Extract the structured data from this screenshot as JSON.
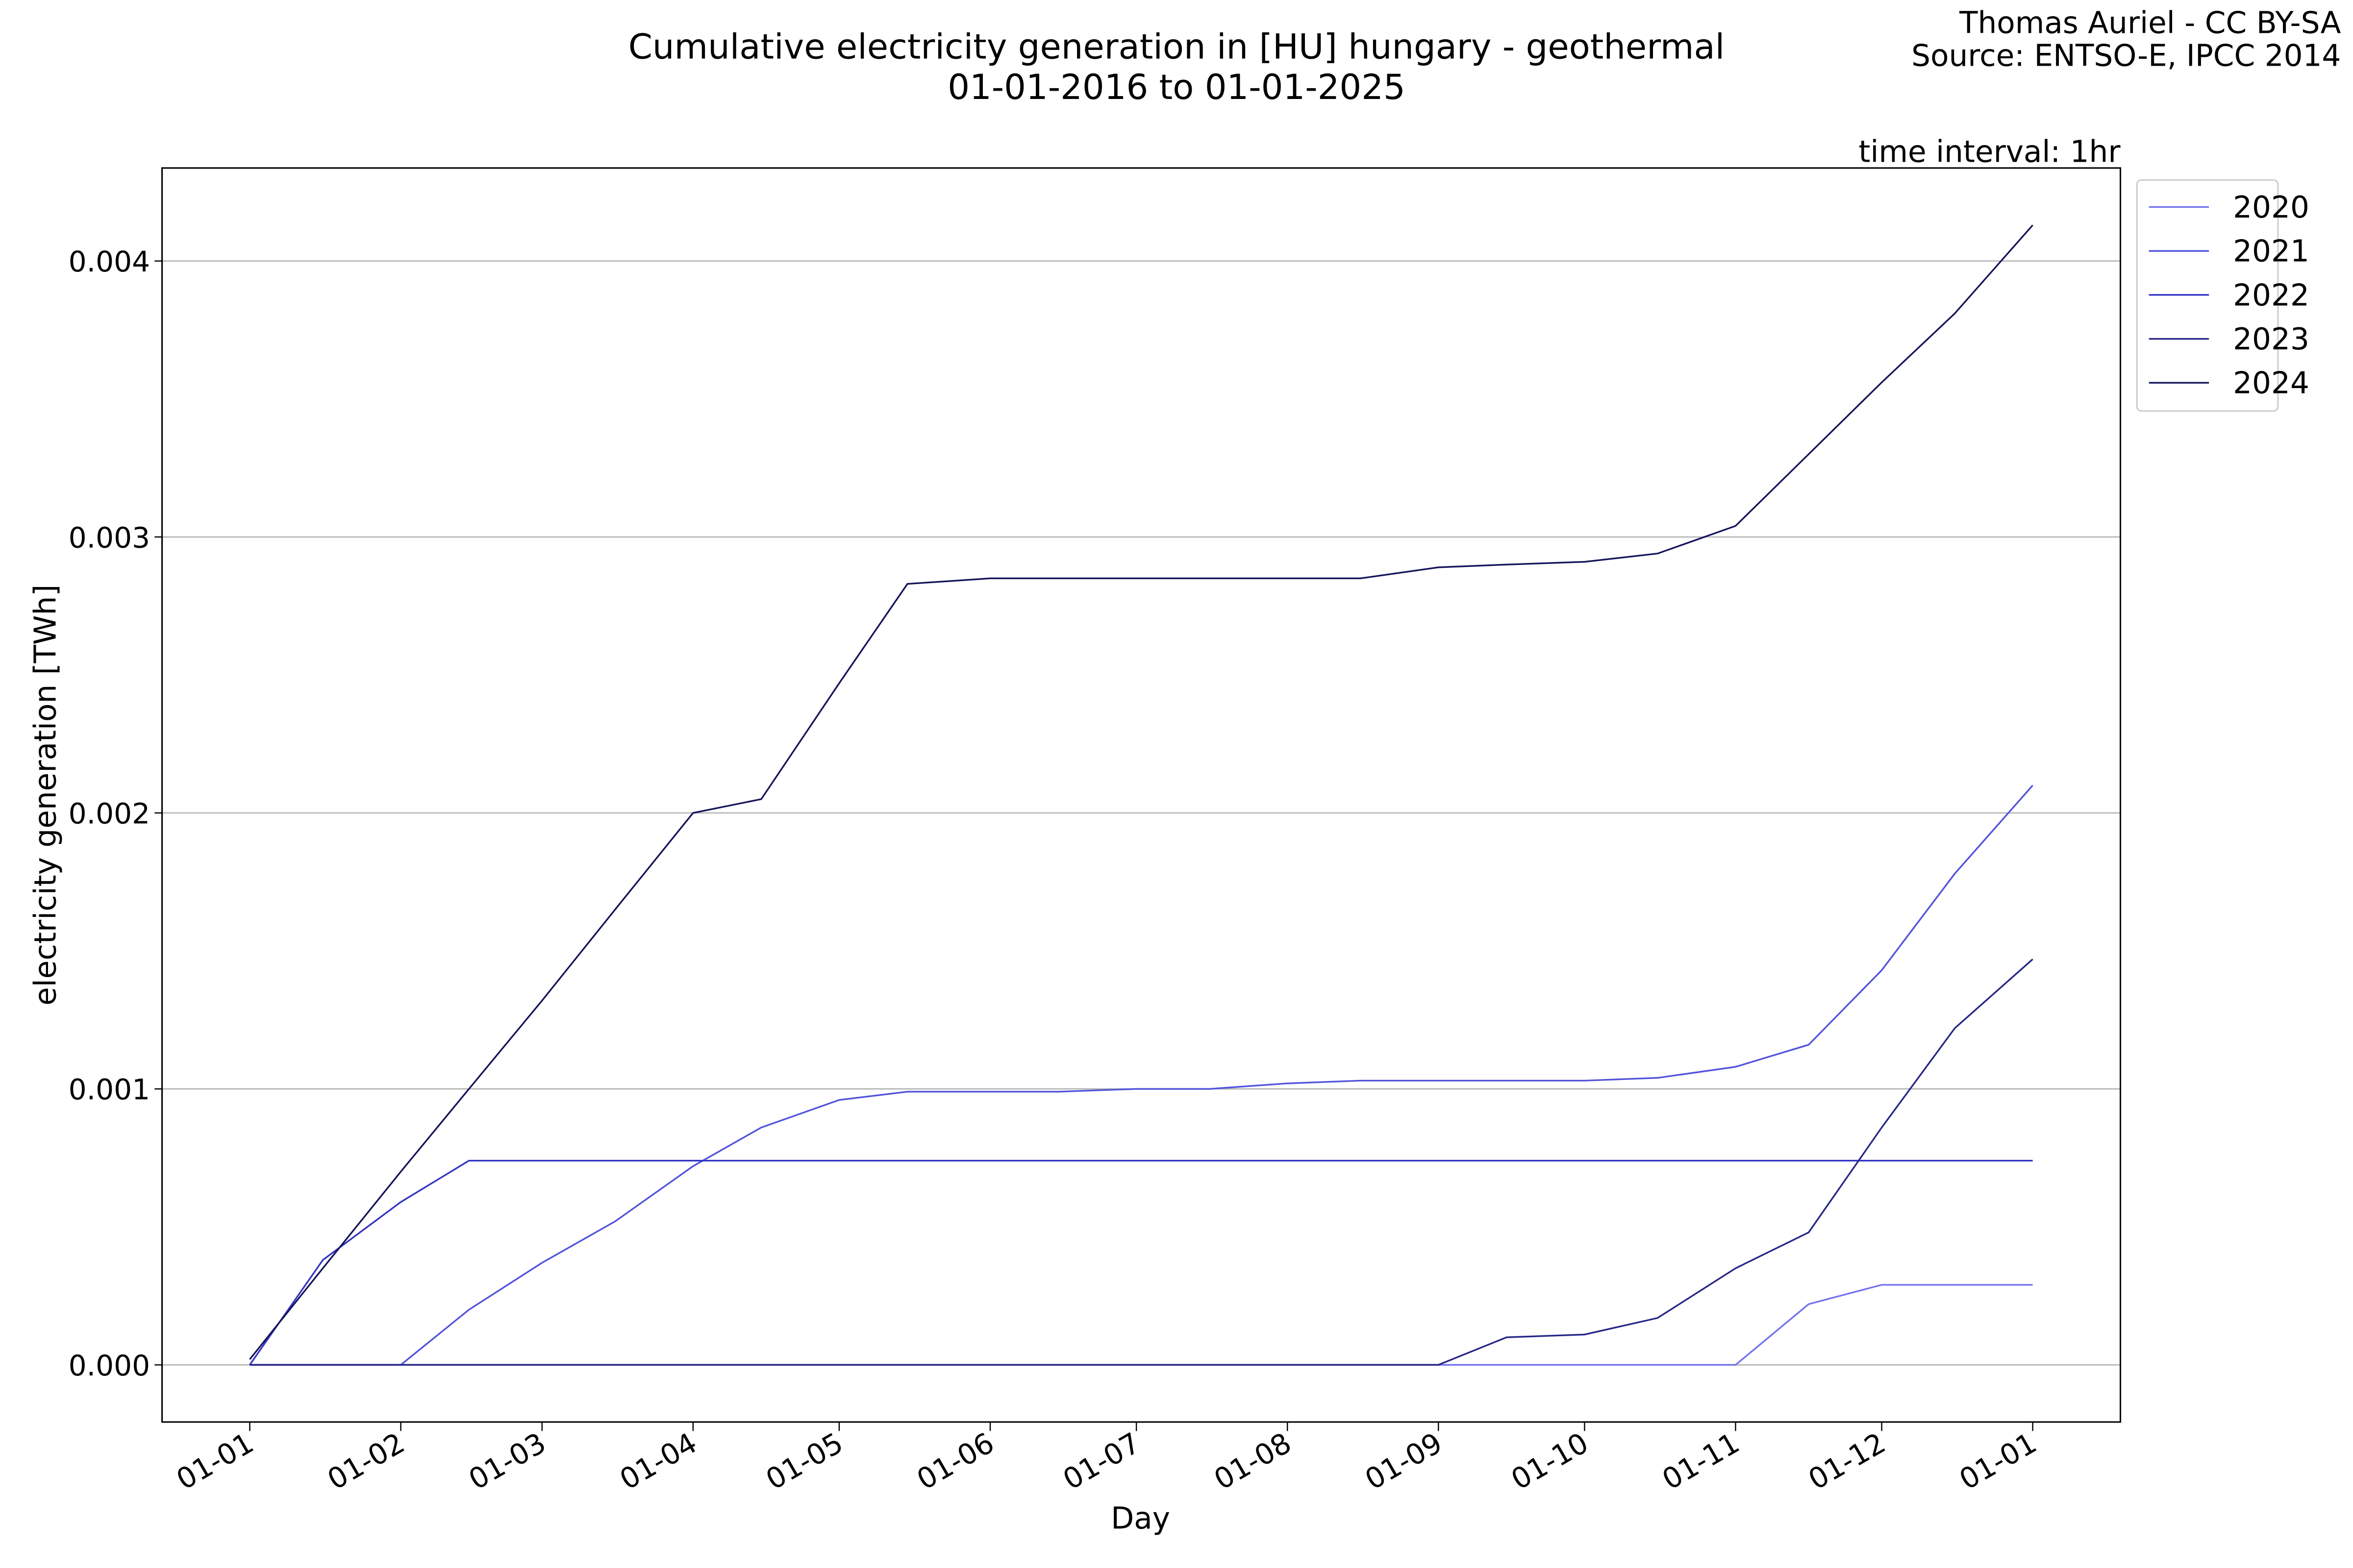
{
  "chart_data": {
    "type": "line",
    "title": "Cumulative electricity generation in [HU] hungary - geothermal",
    "subtitle": "01-01-2016 to 01-01-2025",
    "credit": [
      "Thomas Auriel - CC BY-SA",
      "Source: ENTSO-E, IPCC 2014"
    ],
    "annotation": "time interval: 1hr",
    "x_label": "Day",
    "y_label": "electricity generation [TWh]",
    "x": [
      0,
      15,
      31,
      45,
      60,
      75,
      91,
      105,
      121,
      135,
      152,
      166,
      182,
      197,
      213,
      228,
      244,
      258,
      274,
      289,
      305,
      320,
      335,
      350,
      366
    ],
    "xlim": [
      -18,
      384
    ],
    "xticks": [
      {
        "value": 0,
        "label": "01-01"
      },
      {
        "value": 31,
        "label": "01-02"
      },
      {
        "value": 60,
        "label": "01-03"
      },
      {
        "value": 91,
        "label": "01-04"
      },
      {
        "value": 121,
        "label": "01-05"
      },
      {
        "value": 152,
        "label": "01-06"
      },
      {
        "value": 182,
        "label": "01-07"
      },
      {
        "value": 213,
        "label": "01-08"
      },
      {
        "value": 244,
        "label": "01-09"
      },
      {
        "value": 274,
        "label": "01-10"
      },
      {
        "value": 305,
        "label": "01-11"
      },
      {
        "value": 335,
        "label": "01-12"
      },
      {
        "value": 366,
        "label": "01-01"
      }
    ],
    "ylim": [
      -0.000207,
      0.004337
    ],
    "yticks": [
      {
        "value": 0,
        "label": "0.000"
      },
      {
        "value": 0.001,
        "label": "0.001"
      },
      {
        "value": 0.002,
        "label": "0.002"
      },
      {
        "value": 0.003,
        "label": "0.003"
      },
      {
        "value": 0.004,
        "label": "0.004"
      }
    ],
    "grid": true,
    "legend": "outside upper right",
    "series": [
      {
        "name": "2020",
        "color": "#7272ee",
        "values": [
          0,
          0,
          0,
          0,
          0,
          0,
          0,
          0,
          0,
          0,
          0,
          0,
          0,
          0,
          0,
          0,
          0,
          0,
          0,
          0,
          0,
          0.00022,
          0.00029,
          0.00029,
          0.00029
        ]
      },
      {
        "name": "2021",
        "color": "#5252dc",
        "values": [
          0,
          0,
          0,
          0.0002,
          0.00037,
          0.00052,
          0.00072,
          0.00086,
          0.00096,
          0.00099,
          0.00099,
          0.00099,
          0.001,
          0.001,
          0.00102,
          0.00103,
          0.00103,
          0.00103,
          0.00103,
          0.00104,
          0.00108,
          0.00116,
          0.00143,
          0.00178,
          0.0021
        ]
      },
      {
        "name": "2022",
        "color": "#3434c4",
        "values": [
          0,
          0.00038,
          0.00059,
          0.00074,
          0.00074,
          0.00074,
          0.00074,
          0.00074,
          0.00074,
          0.00074,
          0.00074,
          0.00074,
          0.00074,
          0.00074,
          0.00074,
          0.00074,
          0.00074,
          0.00074,
          0.00074,
          0.00074,
          0.00074,
          0.00074,
          0.00074,
          0.00074,
          0.00074
        ]
      },
      {
        "name": "2023",
        "color": "#262686",
        "values": [
          0,
          0,
          0,
          0,
          0,
          0,
          0,
          0,
          0,
          0,
          0,
          0,
          0,
          0,
          0,
          0,
          0,
          0.0001,
          0.00011,
          0.00017,
          0.00035,
          0.00048,
          0.00086,
          0.00122,
          0.00147
        ]
      },
      {
        "name": "2024",
        "color": "#14145a",
        "values": [
          2e-05,
          0.00035,
          0.0007,
          0.001,
          0.00132,
          0.00165,
          0.002,
          0.00205,
          0.00247,
          0.00283,
          0.00285,
          0.00285,
          0.00285,
          0.00285,
          0.00285,
          0.00285,
          0.00289,
          0.0029,
          0.00291,
          0.00294,
          0.00304,
          0.0033,
          0.00356,
          0.00381,
          0.00413
        ]
      }
    ]
  }
}
